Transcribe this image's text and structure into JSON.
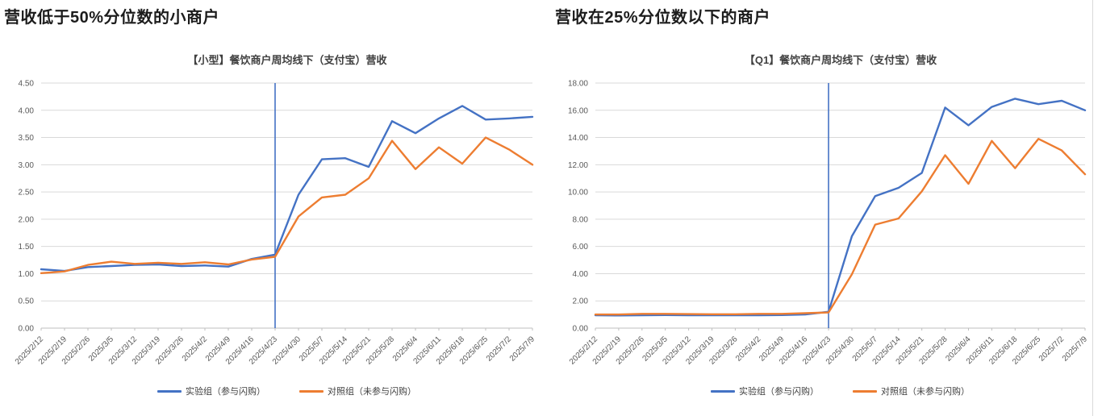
{
  "sections": [
    {
      "heading": "营收低于50%分位数的小商户"
    },
    {
      "heading": "营收在25%分位数以下的商户"
    }
  ],
  "colors": {
    "experimental_blue": "#4472C4",
    "control_orange": "#ED7D31",
    "gridline": "#D9D9D9",
    "axis": "#BFBFBF",
    "tick_text": "#595959",
    "title_text": "#404040"
  },
  "chart_data": [
    {
      "type": "line",
      "title": "【小型】餐饮商户周均线下（支付宝）营收",
      "categories": [
        "2025/2/12",
        "2025/2/19",
        "2025/2/26",
        "2025/3/5",
        "2025/3/12",
        "2025/3/19",
        "2025/3/26",
        "2025/4/2",
        "2025/4/9",
        "2025/4/16",
        "2025/4/23",
        "2025/4/30",
        "2025/5/7",
        "2025/5/14",
        "2025/5/21",
        "2025/5/28",
        "2025/6/4",
        "2025/6/11",
        "2025/6/18",
        "2025/6/25",
        "2025/7/2",
        "2025/7/9"
      ],
      "series": [
        {
          "name": "实验组（参与闪购）",
          "color": "#4472C4",
          "values": [
            1.08,
            1.05,
            1.12,
            1.14,
            1.16,
            1.17,
            1.14,
            1.15,
            1.13,
            1.27,
            1.35,
            2.45,
            3.1,
            3.12,
            2.96,
            3.8,
            3.58,
            3.85,
            4.08,
            3.83,
            3.85,
            3.88
          ]
        },
        {
          "name": "对照组（未参与闪购）",
          "color": "#ED7D31",
          "values": [
            1.01,
            1.04,
            1.16,
            1.22,
            1.18,
            1.2,
            1.18,
            1.21,
            1.17,
            1.26,
            1.31,
            2.05,
            2.4,
            2.45,
            2.75,
            3.44,
            2.92,
            3.32,
            3.02,
            3.5,
            3.28,
            3.0
          ]
        }
      ],
      "ylim": [
        0,
        4.5
      ],
      "ytick_step": 0.5,
      "y_tick_decimals": 2,
      "grid": true,
      "legend_position": "bottom",
      "event_line": {
        "at_category": "2025/4/23",
        "color": "#4472C4"
      }
    },
    {
      "type": "line",
      "title": "【Q1】餐饮商户周均线下（支付宝）营收",
      "categories": [
        "2025/2/12",
        "2025/2/19",
        "2025/2/26",
        "2025/3/5",
        "2025/3/12",
        "2025/3/19",
        "2025/3/26",
        "2025/4/2",
        "2025/4/9",
        "2025/4/16",
        "2025/4/23",
        "2025/4/30",
        "2025/5/7",
        "2025/5/14",
        "2025/5/21",
        "2025/5/28",
        "2025/6/4",
        "2025/6/11",
        "2025/6/18",
        "2025/6/25",
        "2025/7/2",
        "2025/7/9"
      ],
      "series": [
        {
          "name": "实验组（参与闪购）",
          "color": "#4472C4",
          "values": [
            0.95,
            0.93,
            0.95,
            0.96,
            0.95,
            0.94,
            0.95,
            0.95,
            0.96,
            1.0,
            1.2,
            6.75,
            9.7,
            10.3,
            11.4,
            16.2,
            14.9,
            16.25,
            16.85,
            16.45,
            16.7,
            16.0
          ]
        },
        {
          "name": "对照组（未参与闪购）",
          "color": "#ED7D31",
          "values": [
            1.0,
            1.0,
            1.05,
            1.05,
            1.03,
            1.02,
            1.02,
            1.05,
            1.05,
            1.1,
            1.15,
            3.95,
            7.6,
            8.05,
            10.05,
            12.7,
            10.6,
            13.75,
            11.75,
            13.9,
            13.05,
            11.3
          ]
        }
      ],
      "ylim": [
        0,
        18
      ],
      "ytick_step": 2,
      "y_tick_decimals": 2,
      "grid": true,
      "legend_position": "bottom",
      "event_line": {
        "at_category": "2025/4/23",
        "color": "#4472C4"
      }
    }
  ]
}
